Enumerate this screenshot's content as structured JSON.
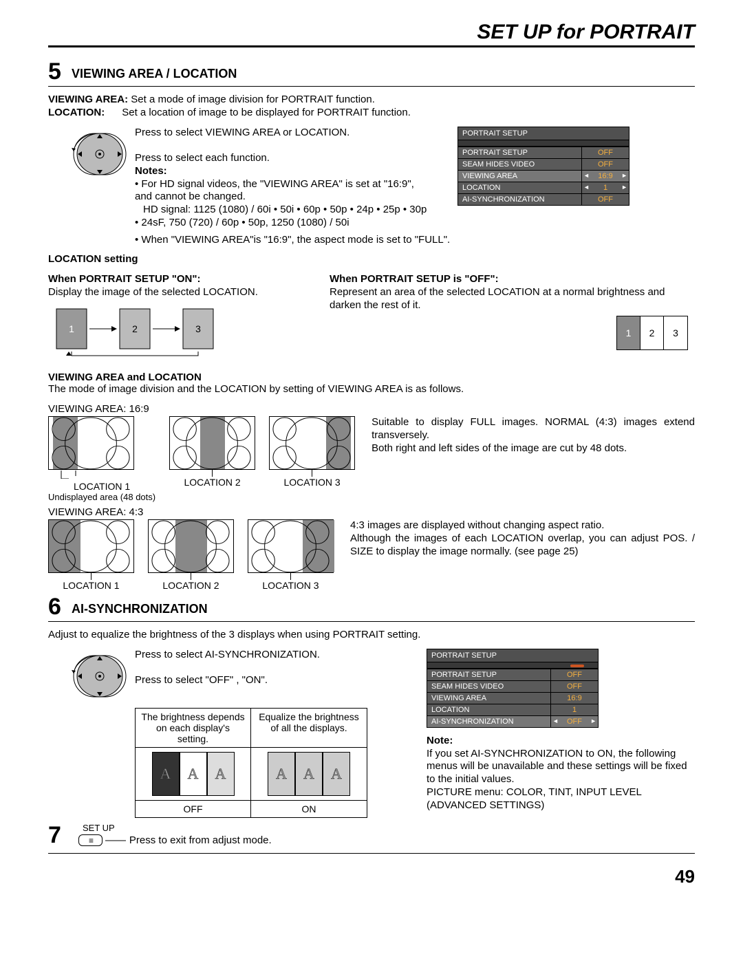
{
  "header": "SET UP for PORTRAIT",
  "step5": {
    "num": "5",
    "title": "VIEWING AREA / LOCATION",
    "va_def_label": "VIEWING AREA:",
    "va_def_text": "Set a mode of image division for PORTRAIT function.",
    "loc_def_label": "LOCATION:",
    "loc_def_text": "Set a location of image to be displayed for PORTRAIT function.",
    "press1": "Press to select VIEWING AREA or LOCATION.",
    "press2": "Press to select each function.",
    "notes_label": "Notes:",
    "note1": "• For HD signal videos, the \"VIEWING AREA\" is set at \"16:9\", and cannot be changed.",
    "note1b": "HD signal: 1125 (1080) / 60i • 50i • 60p • 50p • 24p • 25p • 30p • 24sF, 750 (720) / 60p • 50p, 1250 (1080) / 50i",
    "note2": "• When \"VIEWING AREA\"is \"16:9\", the aspect mode is set to \"FULL\".",
    "loc_setting": "LOCATION setting",
    "when_on_h": "When PORTRAIT SETUP \"ON\":",
    "when_on_t": "Display the image of the selected LOCATION.",
    "when_off_h": "When PORTRAIT SETUP is \"OFF\":",
    "when_off_t": "Represent an area of the selected LOCATION at a normal brightness and darken the rest of it.",
    "va_loc_h": "VIEWING AREA and LOCATION",
    "va_loc_t": "The mode of image division and the LOCATION by setting of VIEWING AREA is as follows.",
    "va169": "VIEWING AREA: 16:9",
    "va43": "VIEWING AREA: 4:3",
    "loc1": "LOCATION 1",
    "loc2": "LOCATION 2",
    "loc3": "LOCATION 3",
    "undisp": "Undisplayed area (48 dots)",
    "desc169a": "Suitable to display FULL images. NORMAL (4:3) images extend transversely.",
    "desc169b": "Both right and left sides of the image are cut by 48 dots.",
    "desc43a": "4:3 images are displayed without changing aspect ratio.",
    "desc43b": "Although the images of each LOCATION overlap, you can adjust POS. / SIZE to display the image normally. (see page 25)"
  },
  "menu1": {
    "title": "PORTRAIT SETUP",
    "rows": [
      {
        "l": "PORTRAIT SETUP",
        "r": "OFF",
        "arrows": false
      },
      {
        "l": "SEAM HIDES VIDEO",
        "r": "OFF",
        "arrows": false
      },
      {
        "l": "VIEWING AREA",
        "r": "16:9",
        "arrows": true,
        "hl": true
      },
      {
        "l": "LOCATION",
        "r": "1",
        "arrows": true
      },
      {
        "l": "AI-SYNCHRONIZATION",
        "r": "OFF",
        "arrows": false
      }
    ]
  },
  "step6": {
    "num": "6",
    "title": "AI-SYNCHRONIZATION",
    "intro": "Adjust to equalize the brightness of the 3 displays when using PORTRAIT setting.",
    "press1": "Press to select AI-SYNCHRONIZATION.",
    "press2": "Press to select \"OFF\" , \"ON\".",
    "tbl_l": "The brightness depends on each display's setting.",
    "tbl_r": "Equalize the brightness of all the displays.",
    "off": "OFF",
    "on": "ON",
    "note_h": "Note:",
    "note_t1": "If you set AI-SYNCHRONIZATION to ON, the following menus will be unavailable and these settings will be ﬁxed to the initial values.",
    "note_t2": "PICTURE menu: COLOR, TINT, INPUT LEVEL (ADVANCED SETTINGS)"
  },
  "menu2": {
    "title": "PORTRAIT SETUP",
    "rows": [
      {
        "l": "PORTRAIT SETUP",
        "r": "OFF",
        "arrows": false
      },
      {
        "l": "SEAM HIDES VIDEO",
        "r": "OFF",
        "arrows": false
      },
      {
        "l": "VIEWING AREA",
        "r": "16:9",
        "arrows": false
      },
      {
        "l": "LOCATION",
        "r": "1",
        "arrows": false
      },
      {
        "l": "AI-SYNCHRONIZATION",
        "r": "OFF",
        "arrows": true,
        "hl": true
      }
    ]
  },
  "step7": {
    "num": "7",
    "btn_top": "SET UP",
    "press": "Press to exit from adjust mode."
  },
  "triplets": {
    "n1": "1",
    "n2": "2",
    "n3": "3"
  },
  "page_number": "49"
}
